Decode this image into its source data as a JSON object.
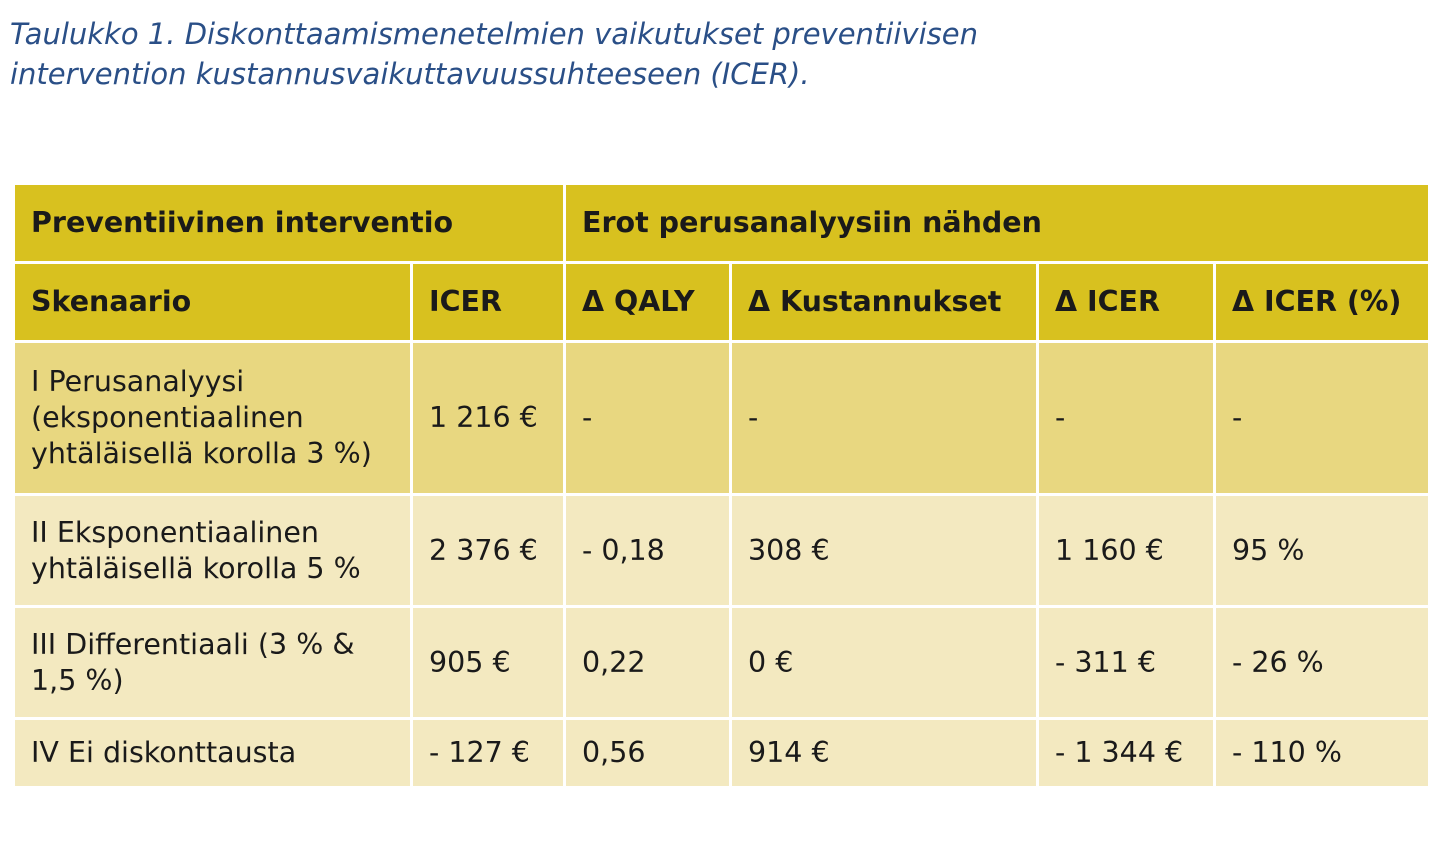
{
  "caption": {
    "line1": "Taulukko 1. Diskonttaamismenetelmien vaikutukset preventiivisen",
    "line2": "intervention kustannusvaikuttavuussuhteeseen (ICER)."
  },
  "table": {
    "group_headers": [
      "Preventiivinen interventio",
      "Erot perusanalyysiin nähden"
    ],
    "columns": [
      "Skenaario",
      "ICER",
      "Δ QALY",
      "Δ Kustannukset",
      "Δ ICER",
      "Δ ICER (%)"
    ],
    "rows": [
      {
        "scenario": [
          "I Perusanalyysi",
          "(eksponentiaalinen",
          "yhtäläisellä korolla 3 %)"
        ],
        "icer": "1 216 €",
        "d_qaly": "-",
        "d_costs": "-",
        "d_icer": "-",
        "d_icer_pct": "-"
      },
      {
        "scenario": [
          "II Eksponentiaalinen",
          "yhtäläisellä korolla 5 %"
        ],
        "icer": "2 376 €",
        "d_qaly": "- 0,18",
        "d_costs": "308 €",
        "d_icer": "1 160 €",
        "d_icer_pct": "95 %"
      },
      {
        "scenario": [
          "III Differentiaali (3 % &",
          "1,5 %)"
        ],
        "icer": "905 €",
        "d_qaly": "0,22",
        "d_costs": "0 €",
        "d_icer": "- 311 €",
        "d_icer_pct": "- 26 %"
      },
      {
        "scenario": [
          "IV Ei diskonttausta"
        ],
        "icer": "- 127 €",
        "d_qaly": "0,56",
        "d_costs": "914 €",
        "d_icer": "- 1 344 €",
        "d_icer_pct": "- 110 %"
      }
    ]
  },
  "colors": {
    "caption": "#2a4f87",
    "header": "#d8c11f",
    "base_row": "#e8d780",
    "alt_row": "#f3e9c0"
  }
}
